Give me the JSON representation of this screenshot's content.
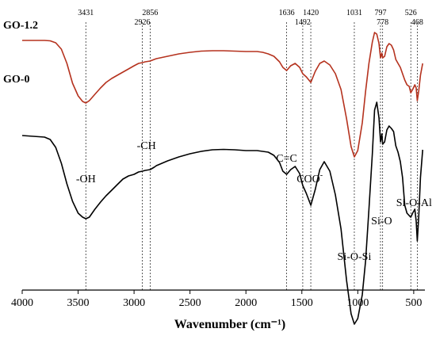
{
  "chart_data": {
    "type": "line",
    "xlabel": "Wavenumber (cm⁻¹)",
    "xlim": [
      4000,
      400
    ],
    "x_ticks": [
      4000,
      3500,
      3000,
      2500,
      2000,
      1500,
      1000,
      500
    ],
    "reference_peaks": [
      {
        "x": 3431,
        "label": "3431"
      },
      {
        "x": 2926,
        "label": "2926"
      },
      {
        "x": 2856,
        "label": "2856"
      },
      {
        "x": 1636,
        "label": "1636"
      },
      {
        "x": 1492,
        "label": "1492"
      },
      {
        "x": 1420,
        "label": "1420"
      },
      {
        "x": 1031,
        "label": "1031"
      },
      {
        "x": 797,
        "label": "797"
      },
      {
        "x": 778,
        "label": "778"
      },
      {
        "x": 526,
        "label": "526"
      },
      {
        "x": 468,
        "label": "468"
      }
    ],
    "band_annotations": [
      {
        "text": "-OH",
        "x": 3431
      },
      {
        "text": "-CH",
        "x": 2890
      },
      {
        "text": "C=C",
        "x": 1636
      },
      {
        "text": "COO",
        "sup": "-",
        "x": 1430
      },
      {
        "text": "Si-O-Si",
        "x": 1031
      },
      {
        "text": "Si-O",
        "x": 787
      },
      {
        "text": "Si-O-Al",
        "x": 497
      }
    ],
    "series": [
      {
        "name": "GO-1.2",
        "color": "#b5321e",
        "x": [
          4000,
          3800,
          3750,
          3700,
          3650,
          3600,
          3550,
          3500,
          3460,
          3431,
          3400,
          3350,
          3300,
          3250,
          3200,
          3150,
          3100,
          3050,
          3000,
          2960,
          2926,
          2900,
          2856,
          2820,
          2800,
          2700,
          2600,
          2500,
          2400,
          2300,
          2200,
          2100,
          2000,
          1900,
          1850,
          1800,
          1750,
          1700,
          1670,
          1636,
          1600,
          1560,
          1520,
          1492,
          1460,
          1420,
          1380,
          1340,
          1300,
          1250,
          1200,
          1150,
          1100,
          1060,
          1031,
          1000,
          960,
          930,
          900,
          870,
          850,
          830,
          810,
          797,
          785,
          778,
          760,
          740,
          720,
          700,
          680,
          660,
          640,
          620,
          600,
          580,
          560,
          540,
          526,
          510,
          490,
          478,
          468,
          455,
          440,
          420
        ],
        "y": [
          16,
          16,
          16.5,
          19,
          27,
          45,
          70,
          86,
          93,
          95,
          92,
          84,
          76,
          69,
          64,
          60,
          56,
          52,
          48,
          45,
          44,
          43,
          42,
          40,
          39,
          36,
          33,
          31,
          29.5,
          29,
          29,
          29.5,
          30,
          30,
          31,
          33,
          36,
          43,
          50,
          54,
          48,
          45,
          50,
          58,
          62,
          69,
          55,
          45,
          42,
          47,
          58,
          78,
          115,
          150,
          163,
          155,
          120,
          80,
          45,
          18,
          6,
          8,
          20,
          38,
          32,
          38,
          36,
          24,
          20,
          22,
          28,
          40,
          45,
          50,
          58,
          66,
          72,
          74,
          82,
          78,
          72,
          76,
          92,
          80,
          60,
          45
        ]
      },
      {
        "name": "GO-0",
        "color": "#000000",
        "x": [
          4000,
          3800,
          3750,
          3700,
          3650,
          3600,
          3550,
          3500,
          3460,
          3431,
          3400,
          3350,
          3300,
          3250,
          3200,
          3150,
          3100,
          3050,
          3000,
          2960,
          2926,
          2900,
          2856,
          2820,
          2800,
          2700,
          2600,
          2500,
          2400,
          2300,
          2200,
          2100,
          2000,
          1900,
          1850,
          1800,
          1750,
          1700,
          1670,
          1636,
          1600,
          1560,
          1520,
          1492,
          1460,
          1420,
          1380,
          1340,
          1300,
          1250,
          1200,
          1150,
          1100,
          1060,
          1031,
          1000,
          960,
          930,
          900,
          870,
          850,
          830,
          810,
          797,
          785,
          778,
          760,
          740,
          720,
          700,
          680,
          660,
          640,
          620,
          600,
          580,
          560,
          540,
          526,
          510,
          490,
          478,
          468,
          455,
          440,
          420
        ],
        "y": [
          67,
          69,
          72,
          82,
          102,
          128,
          150,
          165,
          170,
          172,
          170,
          160,
          151,
          143,
          136,
          129,
          122,
          118,
          116,
          113,
          112,
          111,
          110,
          107,
          105,
          99,
          94,
          90,
          87,
          85,
          84.5,
          85,
          86,
          86,
          87,
          88,
          92,
          101,
          112,
          116,
          110,
          106,
          115,
          130,
          140,
          155,
          135,
          110,
          100,
          112,
          142,
          185,
          250,
          292,
          305,
          298,
          268,
          225,
          160,
          90,
          35,
          25,
          45,
          75,
          65,
          78,
          75,
          60,
          55,
          58,
          62,
          80,
          88,
          100,
          120,
          155,
          165,
          168,
          170,
          165,
          160,
          175,
          200,
          170,
          120,
          85
        ]
      }
    ]
  }
}
